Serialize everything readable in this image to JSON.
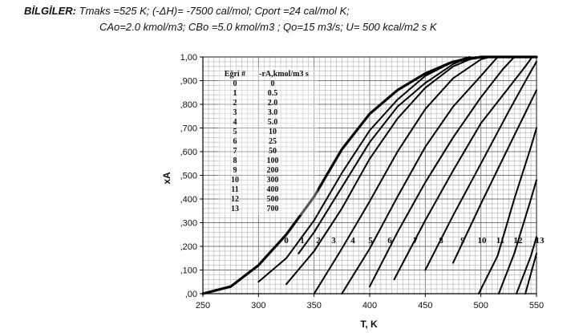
{
  "header": {
    "label": "BİLGİLER:",
    "line1_rest": "Tmaks =525 K; (-ΔH)= -7500 cal/mol; Cport =24 cal/mol K;",
    "line2": "CAo=2.0 kmol/m3; CBo =5.0 kmol/m3 ; Qo=15 m3/s; U= 500 kcal/m2 s K"
  },
  "chart_data": {
    "type": "line",
    "title": "",
    "xlabel": "T, K",
    "ylabel": "xA",
    "xlim": [
      250,
      550
    ],
    "ylim": [
      0,
      1
    ],
    "x_ticks": [
      "250",
      "300",
      "350",
      "400",
      "450",
      "500",
      "550"
    ],
    "y_ticks": [
      ",00",
      ",100",
      ",200",
      ",300",
      ",400",
      ",500",
      ",600",
      ",700",
      ",800",
      ",900",
      "1,00"
    ],
    "grid": true,
    "legend": {
      "placement": "top-left",
      "header_curve": "Eğri #",
      "header_rate": "-rA,kmol/m3 s",
      "rows": [
        {
          "curve": "0",
          "rate": "0"
        },
        {
          "curve": "1",
          "rate": "0.5"
        },
        {
          "curve": "2",
          "rate": "2.0"
        },
        {
          "curve": "3",
          "rate": "3.0"
        },
        {
          "curve": "4",
          "rate": "5.0"
        },
        {
          "curve": "5",
          "rate": "10"
        },
        {
          "curve": "6",
          "rate": "25"
        },
        {
          "curve": "7",
          "rate": "50"
        },
        {
          "curve": "8",
          "rate": "100"
        },
        {
          "curve": "9",
          "rate": "200"
        },
        {
          "curve": "10",
          "rate": "300"
        },
        {
          "curve": "11",
          "rate": "400"
        },
        {
          "curve": "12",
          "rate": "500"
        },
        {
          "curve": "13",
          "rate": "700"
        }
      ]
    },
    "equilibrium_curve": {
      "name": "0",
      "points": [
        [
          250,
          0.0
        ],
        [
          275,
          0.03
        ],
        [
          300,
          0.12
        ],
        [
          325,
          0.25
        ],
        [
          350,
          0.41
        ],
        [
          360,
          0.49
        ],
        [
          375,
          0.61
        ],
        [
          400,
          0.76
        ],
        [
          425,
          0.86
        ],
        [
          450,
          0.93
        ],
        [
          475,
          0.98
        ],
        [
          500,
          1.0
        ],
        [
          550,
          1.0
        ]
      ]
    },
    "series": [
      {
        "name": "1",
        "points": [
          [
            336,
            0.17
          ],
          [
            350,
            0.26
          ],
          [
            375,
            0.45
          ],
          [
            400,
            0.64
          ],
          [
            425,
            0.79
          ],
          [
            450,
            0.89
          ],
          [
            475,
            0.97
          ],
          [
            490,
            1.0
          ]
        ]
      },
      {
        "name": "2",
        "points": [
          [
            300,
            0.05
          ],
          [
            325,
            0.15
          ],
          [
            350,
            0.31
          ],
          [
            375,
            0.51
          ],
          [
            400,
            0.69
          ],
          [
            425,
            0.82
          ],
          [
            450,
            0.92
          ],
          [
            475,
            0.98
          ],
          [
            490,
            1.0
          ]
        ]
      },
      {
        "name": "3",
        "points": [
          [
            325,
            0.04
          ],
          [
            350,
            0.18
          ],
          [
            375,
            0.36
          ],
          [
            400,
            0.57
          ],
          [
            425,
            0.74
          ],
          [
            450,
            0.87
          ],
          [
            475,
            0.96
          ],
          [
            495,
            1.0
          ]
        ]
      },
      {
        "name": "4",
        "points": [
          [
            350,
            0.0
          ],
          [
            375,
            0.19
          ],
          [
            400,
            0.39
          ],
          [
            425,
            0.6
          ],
          [
            450,
            0.78
          ],
          [
            475,
            0.91
          ],
          [
            500,
            0.99
          ],
          [
            508,
            1.0
          ]
        ]
      },
      {
        "name": "5",
        "points": [
          [
            375,
            0.0
          ],
          [
            400,
            0.19
          ],
          [
            425,
            0.41
          ],
          [
            450,
            0.62
          ],
          [
            475,
            0.79
          ],
          [
            500,
            0.92
          ],
          [
            515,
            1.0
          ]
        ]
      },
      {
        "name": "6",
        "points": [
          [
            400,
            0.03
          ],
          [
            425,
            0.26
          ],
          [
            450,
            0.47
          ],
          [
            475,
            0.66
          ],
          [
            500,
            0.83
          ],
          [
            520,
            0.95
          ],
          [
            530,
            1.0
          ]
        ]
      },
      {
        "name": "7",
        "points": [
          [
            422,
            0.06
          ],
          [
            450,
            0.31
          ],
          [
            475,
            0.52
          ],
          [
            500,
            0.72
          ],
          [
            525,
            0.87
          ],
          [
            540,
            0.96
          ],
          [
            546,
            1.0
          ]
        ]
      },
      {
        "name": "8",
        "points": [
          [
            450,
            0.1
          ],
          [
            475,
            0.33
          ],
          [
            500,
            0.55
          ],
          [
            525,
            0.77
          ],
          [
            545,
            0.94
          ],
          [
            550,
            0.98
          ]
        ]
      },
      {
        "name": "9",
        "points": [
          [
            475,
            0.13
          ],
          [
            500,
            0.38
          ],
          [
            525,
            0.62
          ],
          [
            550,
            0.86
          ]
        ]
      },
      {
        "name": "10",
        "points": [
          [
            498,
            0.0
          ],
          [
            515,
            0.16
          ],
          [
            530,
            0.4
          ],
          [
            545,
            0.62
          ],
          [
            550,
            0.7
          ]
        ]
      },
      {
        "name": "11",
        "points": [
          [
            516,
            0.0
          ],
          [
            530,
            0.17
          ],
          [
            545,
            0.4
          ],
          [
            550,
            0.48
          ]
        ]
      },
      {
        "name": "12",
        "points": [
          [
            532,
            0.0
          ],
          [
            545,
            0.16
          ],
          [
            550,
            0.24
          ]
        ]
      },
      {
        "name": "13",
        "points": [
          [
            540,
            0.0
          ],
          [
            550,
            0.17
          ]
        ]
      }
    ],
    "curve_labels": [
      "0",
      "1",
      "2",
      "3",
      "4",
      "5",
      "6",
      "7",
      "8",
      "9",
      "10",
      "11",
      "12",
      "13"
    ]
  }
}
